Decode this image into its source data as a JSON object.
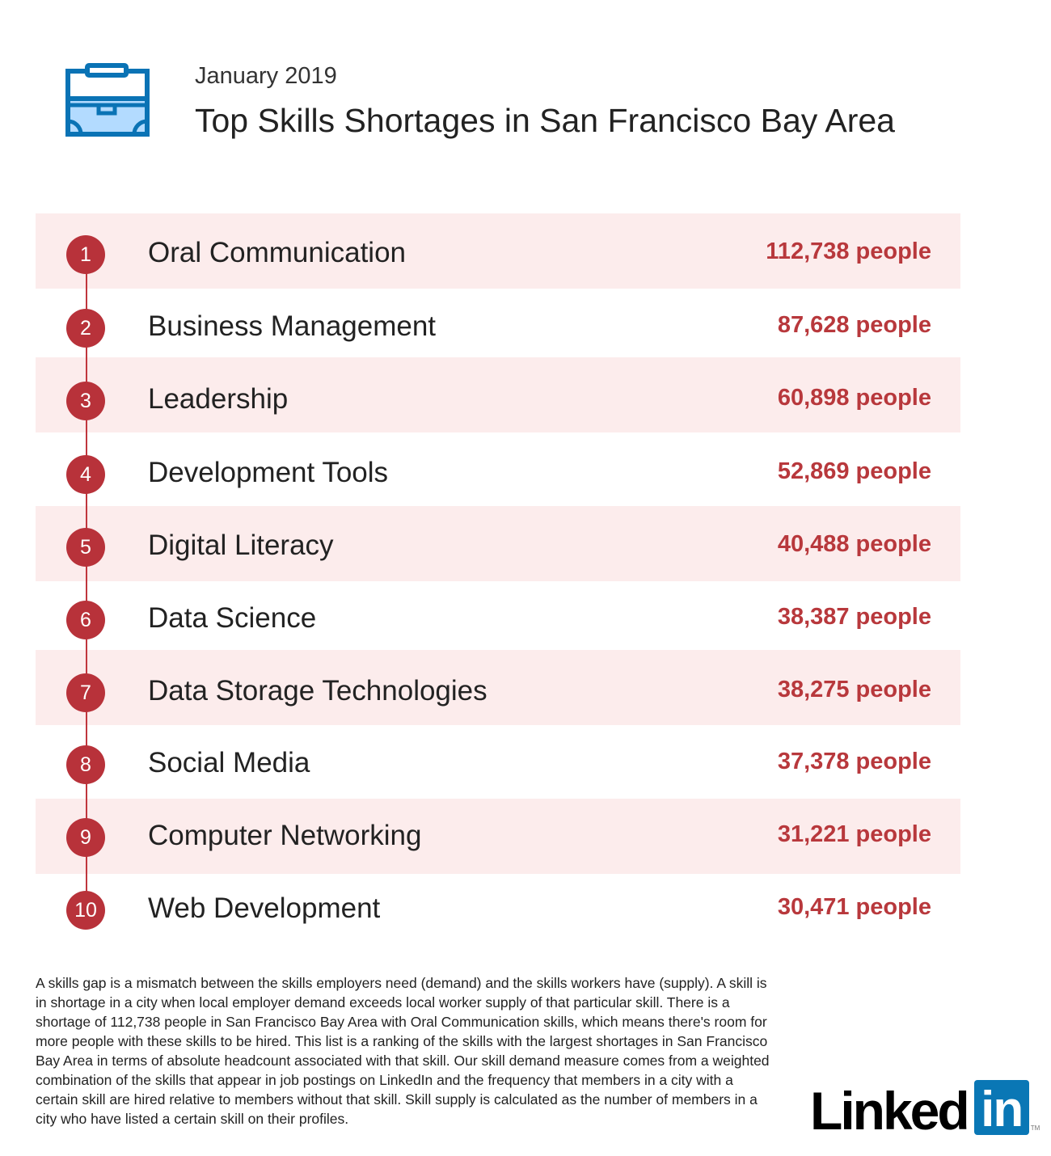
{
  "header": {
    "date": "January 2019",
    "title": "Top Skills Shortages in San Francisco Bay Area"
  },
  "colors": {
    "accent": "#b8323a",
    "band": "#fcecec",
    "brand_blue": "#0a77b5"
  },
  "unit": "people",
  "skills": [
    {
      "rank": "1",
      "name": "Oral Communication",
      "count": "112,738"
    },
    {
      "rank": "2",
      "name": "Business Management",
      "count": "87,628"
    },
    {
      "rank": "3",
      "name": "Leadership",
      "count": "60,898"
    },
    {
      "rank": "4",
      "name": "Development Tools",
      "count": "52,869"
    },
    {
      "rank": "5",
      "name": "Digital Literacy",
      "count": "40,488"
    },
    {
      "rank": "6",
      "name": "Data Science",
      "count": "38,387"
    },
    {
      "rank": "7",
      "name": "Data Storage Technologies",
      "count": "38,275"
    },
    {
      "rank": "8",
      "name": "Social Media",
      "count": "37,378"
    },
    {
      "rank": "9",
      "name": "Computer Networking",
      "count": "31,221"
    },
    {
      "rank": "10",
      "name": "Web Development",
      "count": "30,471"
    }
  ],
  "footnote": "A skills gap is a mismatch between the skills employers need (demand) and the skills workers have (supply). A skill is in shortage in a city when local employer demand exceeds local worker supply of that particular skill. There is a shortage of 112,738 people in San Francisco Bay Area with Oral Communication skills, which means there's room for more people with these skills to be hired. This list is a ranking of the skills with the largest shortages in San Francisco Bay Area in terms of absolute headcount associated with that skill. Our skill demand measure comes from a weighted combination of the skills that appear in job postings on LinkedIn and the frequency that members in a city with a certain skill are hired relative to members without that skill. Skill supply is calculated as the number of members in a city who have listed a certain skill on their profiles.",
  "logo": {
    "word": "Linked",
    "box": "in",
    "tm": "TM"
  }
}
